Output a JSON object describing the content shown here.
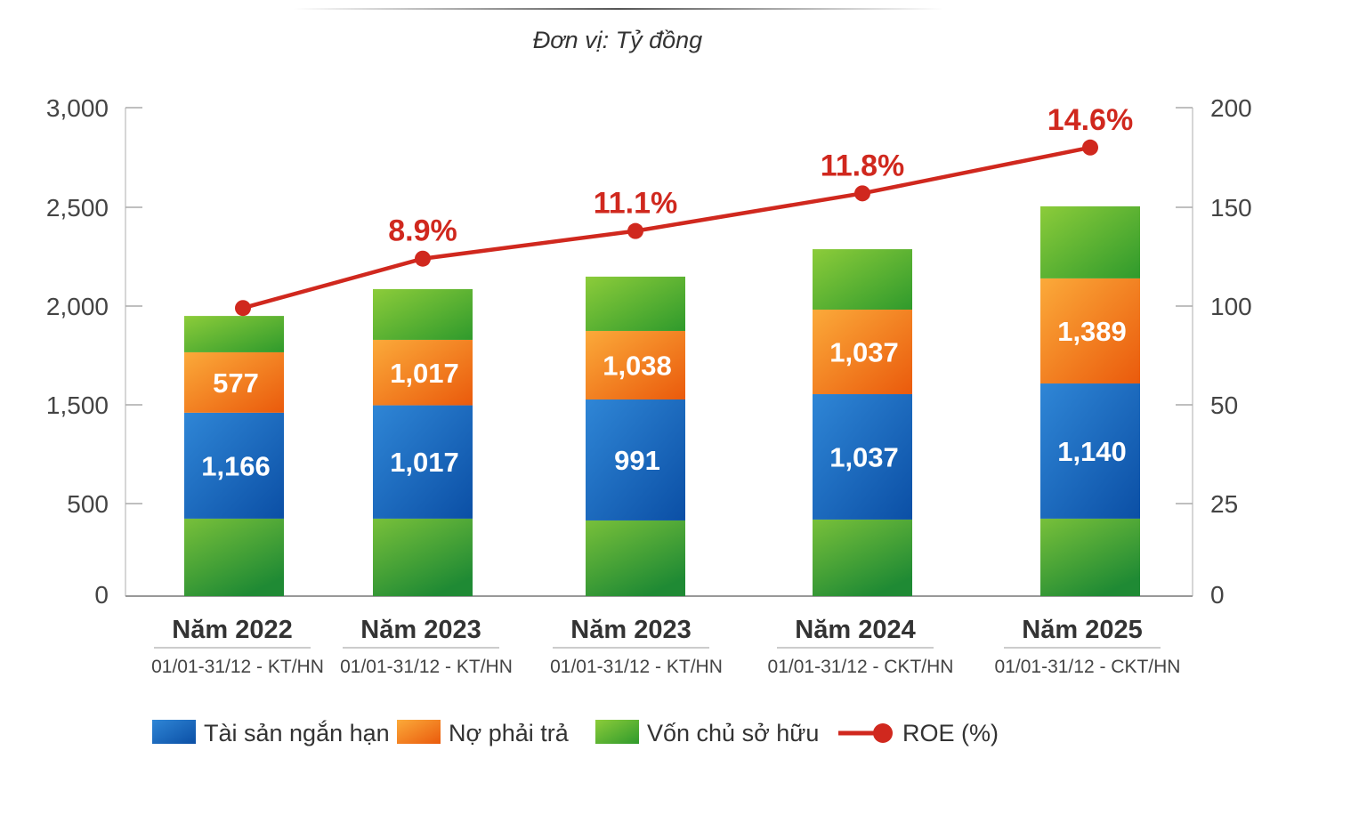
{
  "chart_data": {
    "type": "bar",
    "stacked": true,
    "unit_note": "Đơn vị: Tỷ đồng",
    "left_axis": {
      "ticks": [
        0,
        500,
        1500,
        2000,
        2500,
        3000
      ],
      "tick_labels": [
        "0",
        "500",
        "1,500",
        "2,000",
        "2,500",
        "3,000"
      ]
    },
    "right_axis": {
      "ticks": [
        0,
        25,
        50,
        100,
        150,
        200
      ],
      "tick_labels": [
        "0",
        "25",
        "50",
        "100",
        "150",
        "200"
      ]
    },
    "categories": [
      "Năm 2022",
      "Năm 2023",
      "Năm 2023",
      "Năm 2024",
      "Năm 2025"
    ],
    "subcategories": [
      "01/01-31/12 - KT/HN",
      "01/01-31/12 - KT/HN",
      "01/01-31/12 - KT/HN",
      "01/01-31/12 - CKT/HN",
      "01/01-31/12 - CKT/HN"
    ],
    "series": [
      {
        "name": "Tài sản ngắn hạn",
        "color": "#1565c0",
        "values": [
          1166,
          1017,
          991,
          1037,
          1140
        ],
        "labels": [
          "1,166",
          "1,017",
          "991",
          "1,037",
          "1,140"
        ]
      },
      {
        "name": "Nợ phải trả",
        "color": "#f57c1f",
        "values": [
          577,
          1017,
          1038,
          1037,
          1389
        ],
        "labels": [
          "577",
          "1,017",
          "1,038",
          "1,037",
          "1,389"
        ]
      },
      {
        "name": "Vốn chủ sở hữu",
        "color": "#4caf30"
      },
      {
        "name": "ROE (%)",
        "type": "line",
        "color": "#d0281e",
        "axis": "right",
        "values": [
          99,
          124,
          138,
          157,
          180
        ],
        "labels": [
          "",
          "8.9%",
          "11.1%",
          "11.8%",
          "14.6%"
        ]
      }
    ],
    "stack_bounds_axis_units": [
      {
        "equity_bottom_top": 417,
        "blue_top": 1420,
        "orange_top": 1766,
        "total": 1950
      },
      {
        "equity_bottom_top": 417,
        "blue_top": 1495,
        "orange_top": 1829,
        "total": 2086
      },
      {
        "equity_bottom_top": 407,
        "blue_top": 1527,
        "orange_top": 1874,
        "total": 2149
      },
      {
        "equity_bottom_top": 412,
        "blue_top": 1554,
        "orange_top": 1982,
        "total": 2288
      },
      {
        "equity_bottom_top": 417,
        "blue_top": 1608,
        "orange_top": 2140,
        "total": 2505
      }
    ],
    "legend": {
      "position": "bottom",
      "entries": [
        "Tài sản ngắn hạn",
        "Nợ phải trả",
        "Vốn chủ sở hữu",
        "ROE (%)"
      ]
    },
    "grid": false
  }
}
